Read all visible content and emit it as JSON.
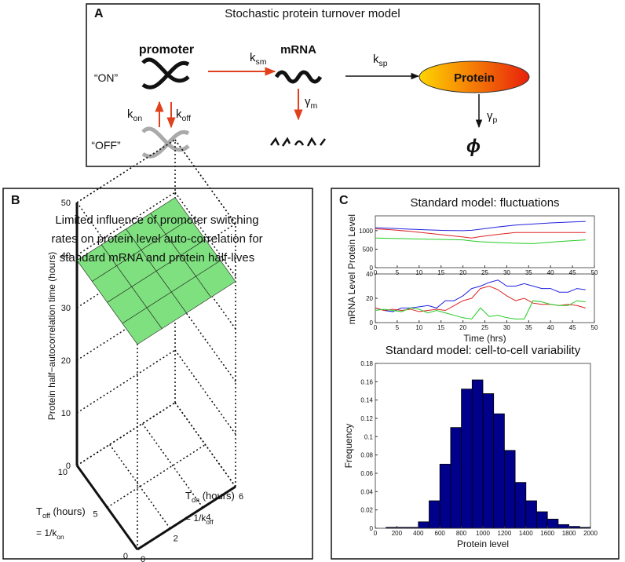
{
  "diagram": {
    "label": "A",
    "title": "Stochastic protein turnover model",
    "promoter": "promoter",
    "mrna": "mRNA",
    "protein": "Protein",
    "on": "“ON”",
    "off": "“OFF”",
    "k_sm": {
      "base": "k",
      "sub": "sm"
    },
    "k_sp": {
      "base": "k",
      "sub": "sp"
    },
    "k_on": {
      "base": "k",
      "sub": "on"
    },
    "k_off": {
      "base": "k",
      "sub": "off"
    },
    "gamma_m": {
      "base": "γ",
      "sub": "m"
    },
    "gamma_p": {
      "base": "γ",
      "sub": "p"
    },
    "phi": "ϕ"
  },
  "chart_data": [
    {
      "type": "surface",
      "panel": "B",
      "title": [
        "Limited influence of promoter switching",
        "rates on protein level auto-correlation for",
        "standard mRNA and protein half-lives"
      ],
      "zlabel": "Protein half−autocorrelation time (hours)",
      "xlabel": [
        {
          "base": "T",
          "sub": "off",
          "rest": " (hours)"
        },
        {
          "base": "= 1/k",
          "sub": "on"
        }
      ],
      "ylabel": [
        {
          "base": "T",
          "sub": "on",
          "rest": " (hours)"
        },
        {
          "base": "= 1/k",
          "sub": "off"
        }
      ],
      "x": [
        0,
        2.5,
        5,
        7.5,
        10
      ],
      "y": [
        0,
        1.5,
        3,
        4.5,
        6
      ],
      "z": [
        [
          39,
          39,
          39,
          39,
          39
        ],
        [
          39,
          39,
          39,
          39,
          39
        ],
        [
          39,
          39,
          39,
          39,
          39
        ],
        [
          39,
          39,
          39,
          39,
          39
        ],
        [
          39,
          39,
          39,
          39,
          39
        ]
      ],
      "color": "#7ee07e",
      "xlim": [
        0,
        10
      ],
      "ylim": [
        0,
        6
      ],
      "zlim": [
        0,
        50
      ],
      "xticks": [
        0,
        5,
        10
      ],
      "yticks": [
        0,
        2,
        4,
        6
      ],
      "zticks": [
        0,
        10,
        20,
        30,
        40,
        50
      ],
      "grid": true
    },
    {
      "type": "line",
      "panel": "C",
      "title": "Standard model: fluctuations",
      "ylabel": "Protein Level",
      "x": [
        0,
        4,
        8,
        12,
        16,
        20,
        22,
        24,
        28,
        32,
        36,
        40,
        44,
        48
      ],
      "series": [
        {
          "color": "#2222dd",
          "values": [
            1080,
            1060,
            1040,
            1020,
            1005,
            1000,
            1010,
            1040,
            1100,
            1150,
            1180,
            1210,
            1230,
            1250
          ]
        },
        {
          "color": "#dd2222",
          "values": [
            1050,
            1020,
            980,
            930,
            880,
            830,
            800,
            840,
            900,
            950,
            950,
            950,
            950,
            950
          ]
        },
        {
          "color": "#22cc22",
          "values": [
            800,
            790,
            780,
            770,
            760,
            750,
            720,
            700,
            680,
            660,
            650,
            690,
            720,
            750
          ]
        }
      ],
      "xlim": [
        0,
        50
      ],
      "ylim": [
        0,
        1400
      ],
      "xticks": [
        0,
        5,
        10,
        15,
        20,
        25,
        30,
        35,
        40,
        45,
        50
      ],
      "yticks": [
        0,
        500,
        1000
      ]
    },
    {
      "type": "line",
      "xlabel": "Time (hrs)",
      "ylabel": "mRNA Level",
      "x": [
        0,
        2,
        4,
        6,
        8,
        10,
        12,
        14,
        16,
        18,
        20,
        22,
        24,
        26,
        28,
        30,
        32,
        34,
        36,
        38,
        40,
        42,
        44,
        46,
        48
      ],
      "series": [
        {
          "color": "#2222dd",
          "values": [
            12,
            10,
            9,
            12,
            12,
            13,
            14,
            12,
            18,
            18,
            22,
            28,
            30,
            33,
            35,
            30,
            30,
            32,
            30,
            28,
            28,
            25,
            25,
            28,
            27
          ]
        },
        {
          "color": "#dd2222",
          "values": [
            12,
            10,
            11,
            10,
            11,
            9,
            10,
            11,
            10,
            14,
            18,
            20,
            28,
            30,
            27,
            22,
            18,
            20,
            16,
            15,
            15,
            14,
            15,
            14,
            12
          ]
        },
        {
          "color": "#22cc22",
          "values": [
            10,
            11,
            10,
            9,
            12,
            11,
            8,
            10,
            8,
            6,
            4,
            3,
            12,
            5,
            6,
            4,
            3,
            3,
            18,
            17,
            15,
            14,
            14,
            18,
            17
          ]
        }
      ],
      "xlim": [
        0,
        50
      ],
      "ylim": [
        0,
        40
      ],
      "xticks": [
        0,
        5,
        10,
        15,
        20,
        25,
        30,
        35,
        40,
        45,
        50
      ],
      "yticks": [
        0,
        20,
        40
      ]
    },
    {
      "type": "histogram",
      "title": "Standard model: cell-to-cell variability",
      "xlabel": "Protein level",
      "ylabel": "Frequency",
      "bins": [
        0,
        100,
        200,
        300,
        400,
        500,
        600,
        700,
        800,
        900,
        1000,
        1100,
        1200,
        1300,
        1400,
        1500,
        1600,
        1700,
        1800,
        1900,
        2000
      ],
      "values": [
        0,
        0.001,
        0.001,
        0.001,
        0.007,
        0.03,
        0.07,
        0.11,
        0.152,
        0.162,
        0.147,
        0.125,
        0.085,
        0.05,
        0.03,
        0.018,
        0.01,
        0.004,
        0.002,
        0.001
      ],
      "color": "#00008b",
      "xlim": [
        0,
        2000
      ],
      "ylim": [
        0,
        0.18
      ],
      "xticks": [
        0,
        200,
        400,
        600,
        800,
        1000,
        1200,
        1400,
        1600,
        1800,
        2000
      ],
      "yticks": [
        0,
        0.02,
        0.04,
        0.06,
        0.08,
        0.1,
        0.12,
        0.14,
        0.16,
        0.18
      ]
    }
  ]
}
